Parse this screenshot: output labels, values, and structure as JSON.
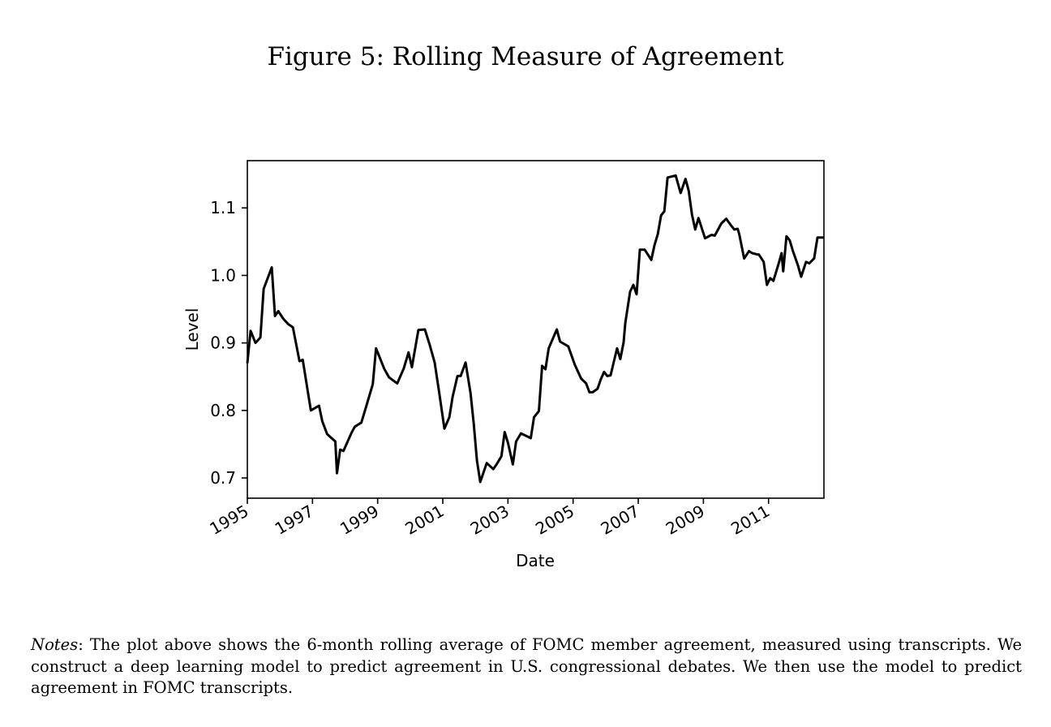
{
  "figure_title": "Figure 5: Rolling Measure of Agreement",
  "notes": {
    "label": "Notes",
    "text": ": The plot above shows the 6-month rolling average of FOMC member agreement, measured using transcripts. We construct a deep learning model to predict agreement in U.S. congressional debates. We then use the model to predict agreement in FOMC transcripts."
  },
  "chart_data": {
    "type": "line",
    "title": "",
    "xlabel": "Date",
    "ylabel": "Level",
    "xlim": [
      1995.0,
      2012.7
    ],
    "ylim": [
      0.67,
      1.17
    ],
    "x_ticks": [
      "1995",
      "1997",
      "1999",
      "2001",
      "2003",
      "2005",
      "2007",
      "2009",
      "2011"
    ],
    "y_ticks": [
      "0.7",
      "0.8",
      "0.9",
      "1.0",
      "1.1"
    ],
    "grid": false,
    "legend": "none",
    "line_color": "#000000",
    "series": [
      {
        "x": [
          1995.0,
          1995.1,
          1995.25,
          1995.4,
          1995.5,
          1995.75,
          1995.85,
          1995.95,
          1996.1,
          1996.25,
          1996.4,
          1996.6,
          1996.7,
          1996.85,
          1996.95,
          1997.2,
          1997.3,
          1997.45,
          1997.7,
          1997.75,
          1997.85,
          1997.95,
          1998.2,
          1998.3,
          1998.5,
          1998.65,
          1998.85,
          1998.95,
          1999.2,
          1999.35,
          1999.6,
          1999.7,
          1999.8,
          1999.95,
          2000.05,
          2000.25,
          2000.45,
          2000.6,
          2000.75,
          2000.9,
          2001.05,
          2001.2,
          2001.3,
          2001.45,
          2001.55,
          2001.7,
          2001.85,
          2001.95,
          2002.05,
          2002.15,
          2002.35,
          2002.55,
          2002.65,
          2002.8,
          2002.9,
          2003.0,
          2003.15,
          2003.25,
          2003.4,
          2003.7,
          2003.8,
          2003.95,
          2004.05,
          2004.15,
          2004.25,
          2004.5,
          2004.6,
          2004.85,
          2005.05,
          2005.25,
          2005.4,
          2005.5,
          2005.6,
          2005.75,
          2005.85,
          2005.95,
          2006.05,
          2006.15,
          2006.35,
          2006.45,
          2006.55,
          2006.6,
          2006.75,
          2006.85,
          2006.95,
          2007.05,
          2007.2,
          2007.4,
          2007.5,
          2007.6,
          2007.7,
          2007.8,
          2007.9,
          2008.15,
          2008.3,
          2008.45,
          2008.55,
          2008.65,
          2008.75,
          2008.85,
          2009.05,
          2009.25,
          2009.35,
          2009.55,
          2009.7,
          2009.85,
          2009.95,
          2010.05,
          2010.1,
          2010.25,
          2010.4,
          2010.5,
          2010.65,
          2010.7,
          2010.85,
          2010.95,
          2011.05,
          2011.15,
          2011.3,
          2011.4,
          2011.45,
          2011.55,
          2011.65,
          2011.75,
          2011.9,
          2012.0,
          2012.15,
          2012.25,
          2012.4,
          2012.5,
          2012.7
        ],
        "y": [
          0.87,
          0.918,
          0.9,
          0.908,
          0.98,
          1.012,
          0.94,
          0.947,
          0.936,
          0.928,
          0.923,
          0.873,
          0.875,
          0.83,
          0.8,
          0.807,
          0.784,
          0.765,
          0.754,
          0.707,
          0.742,
          0.74,
          0.767,
          0.776,
          0.782,
          0.806,
          0.839,
          0.892,
          0.862,
          0.849,
          0.84,
          0.851,
          0.862,
          0.886,
          0.864,
          0.919,
          0.92,
          0.897,
          0.871,
          0.823,
          0.773,
          0.79,
          0.82,
          0.851,
          0.851,
          0.871,
          0.826,
          0.78,
          0.725,
          0.694,
          0.722,
          0.713,
          0.72,
          0.732,
          0.768,
          0.752,
          0.72,
          0.754,
          0.766,
          0.759,
          0.79,
          0.799,
          0.866,
          0.861,
          0.892,
          0.92,
          0.902,
          0.895,
          0.868,
          0.847,
          0.84,
          0.827,
          0.827,
          0.832,
          0.846,
          0.857,
          0.851,
          0.852,
          0.892,
          0.876,
          0.901,
          0.929,
          0.976,
          0.986,
          0.972,
          1.038,
          1.038,
          1.023,
          1.045,
          1.061,
          1.089,
          1.095,
          1.145,
          1.148,
          1.122,
          1.143,
          1.125,
          1.09,
          1.068,
          1.085,
          1.055,
          1.06,
          1.059,
          1.077,
          1.084,
          1.074,
          1.068,
          1.069,
          1.061,
          1.025,
          1.036,
          1.033,
          1.031,
          1.031,
          1.02,
          0.986,
          0.996,
          0.992,
          1.016,
          1.033,
          1.006,
          1.058,
          1.052,
          1.036,
          1.015,
          0.998,
          1.02,
          1.018,
          1.025,
          1.056,
          1.056
        ]
      }
    ]
  }
}
